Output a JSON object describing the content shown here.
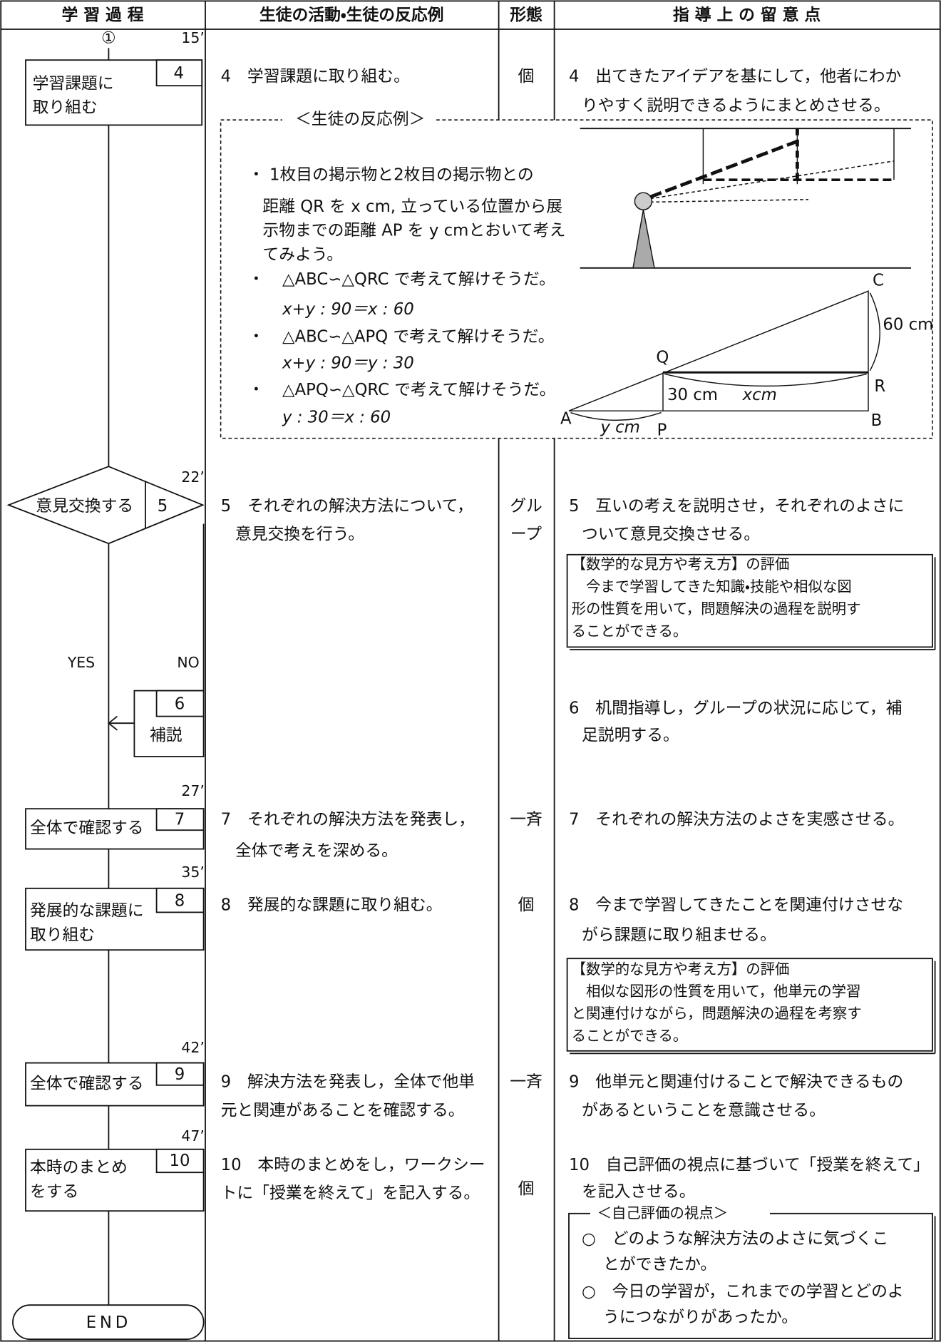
{
  "header": [
    "学 習 過 程",
    "生徒の活動・生徒の反応例",
    "形態",
    "指 導 上 の 留 意 点"
  ],
  "flow": {
    "start": "①",
    "times": [
      "15’",
      "22’",
      "27’",
      "35’",
      "42’",
      "47’"
    ],
    "nodes": [
      {
        "number": "4",
        "label": [
          "学習課題に",
          "取り組む"
        ]
      },
      {
        "number": "5",
        "label": [
          "意見交換する"
        ]
      },
      {
        "number": "6",
        "label": [
          "補説"
        ]
      },
      {
        "number": "7",
        "label": [
          "全体で確認する"
        ]
      },
      {
        "number": "8",
        "label": [
          "発展的な課題に",
          "取り組む"
        ]
      },
      {
        "number": "9",
        "label": [
          "全体で確認する"
        ]
      },
      {
        "number": "10",
        "label": [
          "本時のまとめ",
          "をする"
        ]
      }
    ],
    "branches": [
      "YES",
      "NO"
    ],
    "end": "END"
  },
  "activities": [
    [
      "4　学習課題に取り組む。"
    ],
    [
      "5　それぞれの解決方法について，",
      "意見交換を行う。"
    ],
    [
      "7　それぞれの解決方法を発表し，",
      "全体で考えを深める。"
    ],
    [
      "8　発展的な課題に取り組む。"
    ],
    [
      "9　解決方法を発表し，全体で他単",
      "元と関連があることを確認する。"
    ],
    [
      "10　本時のまとめをし，ワークシー",
      "トに「授業を終えて」を記入する。"
    ]
  ],
  "reactions": {
    "title": "＜生徒の反応例＞",
    "items": [
      [
        "1枚目の掲示物と2枚目の掲示物との",
        "距離 QR を x cm, 立っている位置から展",
        "示物までの距離 AP を y cmとおいて考え",
        "てみよう。"
      ],
      [
        "△ABC∽△QRC で考えて解けそうだ。",
        "x+y : 90＝x : 60"
      ],
      [
        "△ABC∽△APQ で考えて解けそうだ。",
        "x+y : 90＝y : 30"
      ],
      [
        "△APQ∽△QRC で考えて解けそうだ。",
        "y : 30＝x : 60"
      ]
    ]
  },
  "figure": {
    "points": [
      "A",
      "B",
      "C",
      "P",
      "Q",
      "R"
    ],
    "lengths": [
      "60 cm",
      "30 cm",
      "xcm",
      "y cm"
    ]
  },
  "forms": [
    "個",
    "グル",
    "ープ",
    "一斉",
    "個",
    "一斉",
    "個"
  ],
  "guidance": [
    [
      "4　出てきたアイデアを基にして，他者にわか",
      "りやすく説明できるようにまとめさせる。"
    ],
    [
      "5　互いの考えを説明させ，それぞれのよさに",
      "ついて意見交換させる。"
    ],
    [
      "6　机間指導し，グループの状況に応じて，補",
      "足説明する。"
    ],
    [
      "7　それぞれの解決方法のよさを実感させる。"
    ],
    [
      "8　今まで学習してきたことを関連付けさせな",
      "がら課題に取り組ませる。"
    ],
    [
      "9　他単元と関連付けることで解決できるもの",
      "があるということを意識させる。"
    ],
    [
      "10　自己評価の視点に基づいて「授業を終えて」",
      "を記入させる。"
    ]
  ],
  "evaluations": [
    [
      "【数学的な見方や考え方】の評価",
      "　今まで学習してきた知識・技能や相似な図",
      "形の性質を用いて，問題解決の過程を説明す",
      "ることができる。"
    ],
    [
      "【数学的な見方や考え方】の評価",
      "　相似な図形の性質を用いて，他単元の学習",
      "と関連付けながら，問題解決の過程を考察す",
      "ることができる。"
    ]
  ],
  "self_evaluation": {
    "title": "＜自己評価の視点＞",
    "items": [
      [
        "○　どのような解決方法のよさに気づくこ",
        "とができたか。"
      ],
      [
        "○　今日の学習が，これまでの学習とどのよ",
        "うにつながりがあったか。"
      ]
    ]
  }
}
